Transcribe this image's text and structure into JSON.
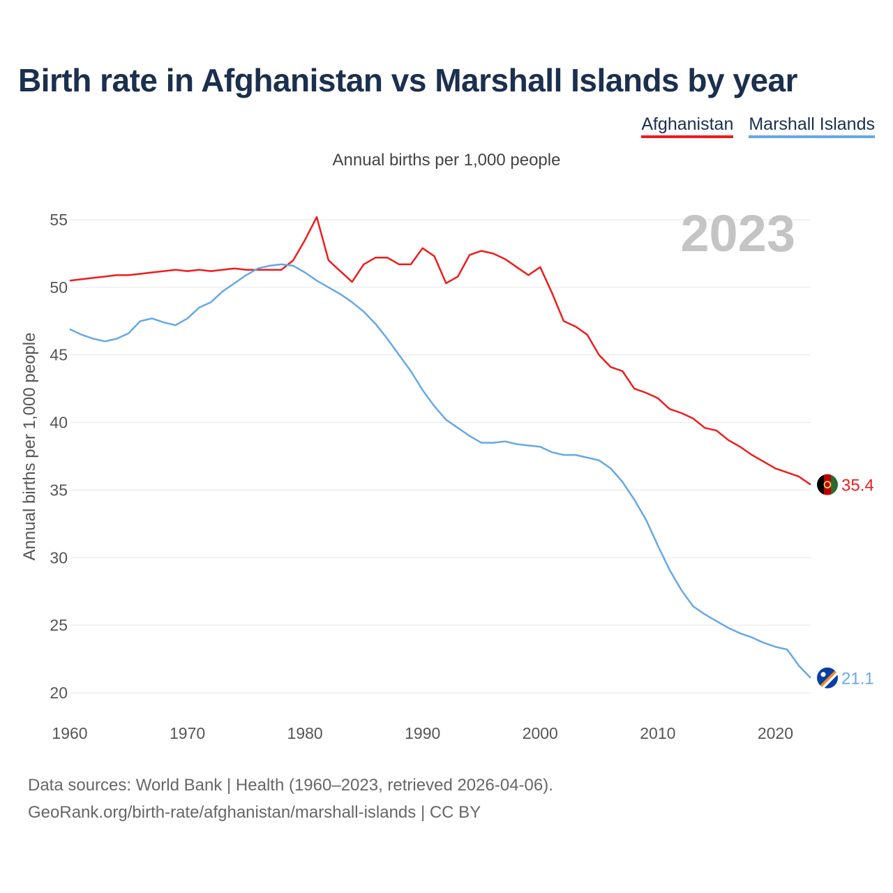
{
  "title": "Birth rate in Afghanistan vs Marshall Islands by year",
  "subtitle": "Annual births per 1,000 people",
  "watermark_year": "2023",
  "footer": {
    "line1": "Data sources: World Bank | Health (1960–2023, retrieved 2026-04-06).",
    "line2": "GeoRank.org/birth-rate/afghanistan/marshall-islands | CC BY"
  },
  "legend": [
    {
      "label": "Afghanistan",
      "color": "#ee1c1c"
    },
    {
      "label": "Marshall Islands",
      "color": "#66a8e6"
    }
  ],
  "chart_data": {
    "type": "line",
    "title": "Birth rate in Afghanistan vs Marshall Islands by year",
    "xlabel": "",
    "ylabel": "Annual births per 1,000 people",
    "xlim": [
      1960,
      2023
    ],
    "ylim": [
      20,
      56
    ],
    "xticks": [
      1960,
      1970,
      1980,
      1990,
      2000,
      2010,
      2020
    ],
    "yticks": [
      20,
      25,
      30,
      35,
      40,
      45,
      50,
      55
    ],
    "grid": true,
    "legend_position": "top-right",
    "x": [
      1960,
      1961,
      1962,
      1963,
      1964,
      1965,
      1966,
      1967,
      1968,
      1969,
      1970,
      1971,
      1972,
      1973,
      1974,
      1975,
      1976,
      1977,
      1978,
      1979,
      1980,
      1981,
      1982,
      1983,
      1984,
      1985,
      1986,
      1987,
      1988,
      1989,
      1990,
      1991,
      1992,
      1993,
      1994,
      1995,
      1996,
      1997,
      1998,
      1999,
      2000,
      2001,
      2002,
      2003,
      2004,
      2005,
      2006,
      2007,
      2008,
      2009,
      2010,
      2011,
      2012,
      2013,
      2014,
      2015,
      2016,
      2017,
      2018,
      2019,
      2020,
      2021,
      2022,
      2023
    ],
    "series": [
      {
        "name": "Afghanistan",
        "color": "#ee1c1c",
        "end_label": "35.4",
        "values": [
          50.5,
          50.6,
          50.7,
          50.8,
          50.9,
          50.9,
          51.0,
          51.1,
          51.2,
          51.3,
          51.2,
          51.3,
          51.2,
          51.3,
          51.4,
          51.3,
          51.3,
          51.3,
          51.3,
          52.0,
          53.5,
          55.2,
          52.0,
          51.2,
          50.4,
          51.7,
          52.2,
          52.2,
          51.7,
          51.7,
          52.9,
          52.3,
          50.3,
          50.8,
          52.4,
          52.7,
          52.5,
          52.1,
          51.5,
          50.9,
          51.5,
          49.6,
          47.5,
          47.1,
          46.5,
          45.0,
          44.1,
          43.8,
          42.5,
          42.2,
          41.8,
          41.0,
          40.7,
          40.3,
          39.6,
          39.4,
          38.7,
          38.2,
          37.6,
          37.1,
          36.6,
          36.3,
          36.0,
          35.4
        ]
      },
      {
        "name": "Marshall Islands",
        "color": "#66a8e6",
        "end_label": "21.1",
        "values": [
          46.9,
          46.5,
          46.2,
          46.0,
          46.2,
          46.6,
          47.5,
          47.7,
          47.4,
          47.2,
          47.7,
          48.5,
          48.9,
          49.7,
          50.3,
          50.9,
          51.4,
          51.6,
          51.7,
          51.6,
          51.1,
          50.5,
          50.0,
          49.5,
          48.9,
          48.2,
          47.3,
          46.2,
          45.0,
          43.8,
          42.4,
          41.2,
          40.2,
          39.6,
          39.0,
          38.5,
          38.5,
          38.6,
          38.4,
          38.3,
          38.2,
          37.8,
          37.6,
          37.6,
          37.4,
          37.2,
          36.6,
          35.6,
          34.3,
          32.8,
          30.9,
          29.1,
          27.6,
          26.4,
          25.8,
          25.3,
          24.8,
          24.4,
          24.1,
          23.7,
          23.4,
          23.2,
          22.0,
          21.1
        ]
      }
    ]
  }
}
